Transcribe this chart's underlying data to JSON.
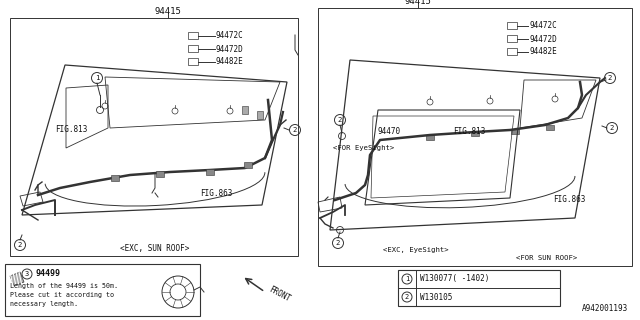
{
  "bg_color": "#ffffff",
  "diagram_id": "A942001193",
  "lc": "#333333",
  "tc": "#111111",
  "left": {
    "part_top": "94415",
    "labels": [
      "94472C",
      "94472D",
      "94482E"
    ],
    "fig1": "FIG.813",
    "fig2": "FIG.863",
    "bottom": "<EXC, SUN ROOF>"
  },
  "right": {
    "part_top": "94415",
    "part_inner": "94470",
    "labels": [
      "94472C",
      "94472D",
      "94482E"
    ],
    "fig1": "FIG.813",
    "fig2": "FIG.863",
    "label_top": "<FOR EyeSight>",
    "label_bot_left": "<EXC, EyeSight>",
    "label_bot_right": "<FOR SUN ROOF>"
  },
  "legend": {
    "circle": "3",
    "part": "94499",
    "lines": [
      "Length of the 94499 is 50m.",
      "Please cut it according to",
      "necessary length."
    ]
  },
  "bolts": [
    {
      "num": "1",
      "text": "W130077( -1402)"
    },
    {
      "num": "2",
      "text": "W130105"
    }
  ],
  "front_label": "FRONT"
}
